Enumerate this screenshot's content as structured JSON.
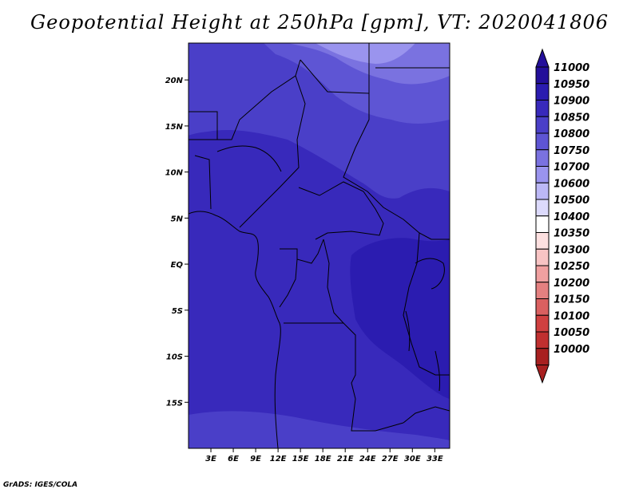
{
  "title": "Geopotential Height at 250hPa [gpm], VT: 2020041806",
  "credit": "GrADS: IGES/COLA",
  "map": {
    "lon_range": [
      0,
      35
    ],
    "lat_range": [
      -20,
      24
    ],
    "lat_ticks": [
      {
        "value": 20,
        "label": "20N"
      },
      {
        "value": 15,
        "label": "15N"
      },
      {
        "value": 10,
        "label": "10N"
      },
      {
        "value": 5,
        "label": "5N"
      },
      {
        "value": 0,
        "label": "EQ"
      },
      {
        "value": -5,
        "label": "5S"
      },
      {
        "value": -10,
        "label": "10S"
      },
      {
        "value": -15,
        "label": "15S"
      }
    ],
    "lon_ticks": [
      {
        "value": 3,
        "label": "3E"
      },
      {
        "value": 6,
        "label": "6E"
      },
      {
        "value": 9,
        "label": "9E"
      },
      {
        "value": 12,
        "label": "12E"
      },
      {
        "value": 15,
        "label": "15E"
      },
      {
        "value": 18,
        "label": "18E"
      },
      {
        "value": 21,
        "label": "21E"
      },
      {
        "value": 24,
        "label": "24E"
      },
      {
        "value": 27,
        "label": "27E"
      },
      {
        "value": 30,
        "label": "30E"
      },
      {
        "value": 33,
        "label": "33E"
      }
    ]
  },
  "colorbar": {
    "levels": [
      {
        "label": "11000",
        "color": "#230f9a"
      },
      {
        "label": "10950",
        "color": "#2b1cb0"
      },
      {
        "label": "10900",
        "color": "#3829bb"
      },
      {
        "label": "10850",
        "color": "#4a3fc8"
      },
      {
        "label": "10800",
        "color": "#5e55d4"
      },
      {
        "label": "10750",
        "color": "#7a72e0"
      },
      {
        "label": "10700",
        "color": "#9a94ee"
      },
      {
        "label": "10600",
        "color": "#bcb8f6"
      },
      {
        "label": "10500",
        "color": "#dcdafc"
      },
      {
        "label": "10400",
        "color": "#ffffff"
      },
      {
        "label": "10350",
        "color": "#fde0e0"
      },
      {
        "label": "10300",
        "color": "#f8c4c4"
      },
      {
        "label": "10250",
        "color": "#f0a0a0"
      },
      {
        "label": "10200",
        "color": "#e48080"
      },
      {
        "label": "10150",
        "color": "#da6060"
      },
      {
        "label": "10100",
        "color": "#d04040"
      },
      {
        "label": "10050",
        "color": "#c03030"
      },
      {
        "label": "10000",
        "color": "#a82020"
      }
    ]
  }
}
